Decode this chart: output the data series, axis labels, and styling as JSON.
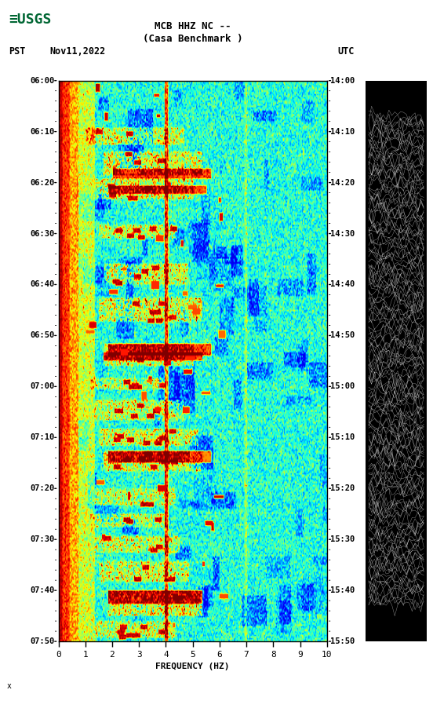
{
  "title_line1": "MCB HHZ NC --",
  "title_line2": "(Casa Benchmark )",
  "left_timezone": "PST",
  "left_date": "Nov11,2022",
  "right_timezone": "UTC",
  "freq_label": "FREQUENCY (HZ)",
  "freq_ticks": [
    0,
    1,
    2,
    3,
    4,
    5,
    6,
    7,
    8,
    9,
    10
  ],
  "times_pst": [
    "06:00",
    "06:10",
    "06:20",
    "06:30",
    "06:40",
    "06:50",
    "07:00",
    "07:10",
    "07:20",
    "07:30",
    "07:40",
    "07:50"
  ],
  "times_utc": [
    "14:00",
    "14:10",
    "14:20",
    "14:30",
    "14:40",
    "14:50",
    "15:00",
    "15:10",
    "15:20",
    "15:30",
    "15:40",
    "15:50"
  ],
  "background_color": "#ffffff",
  "fig_width": 5.52,
  "fig_height": 8.93,
  "usgs_color": "#006633",
  "small_label": "x"
}
